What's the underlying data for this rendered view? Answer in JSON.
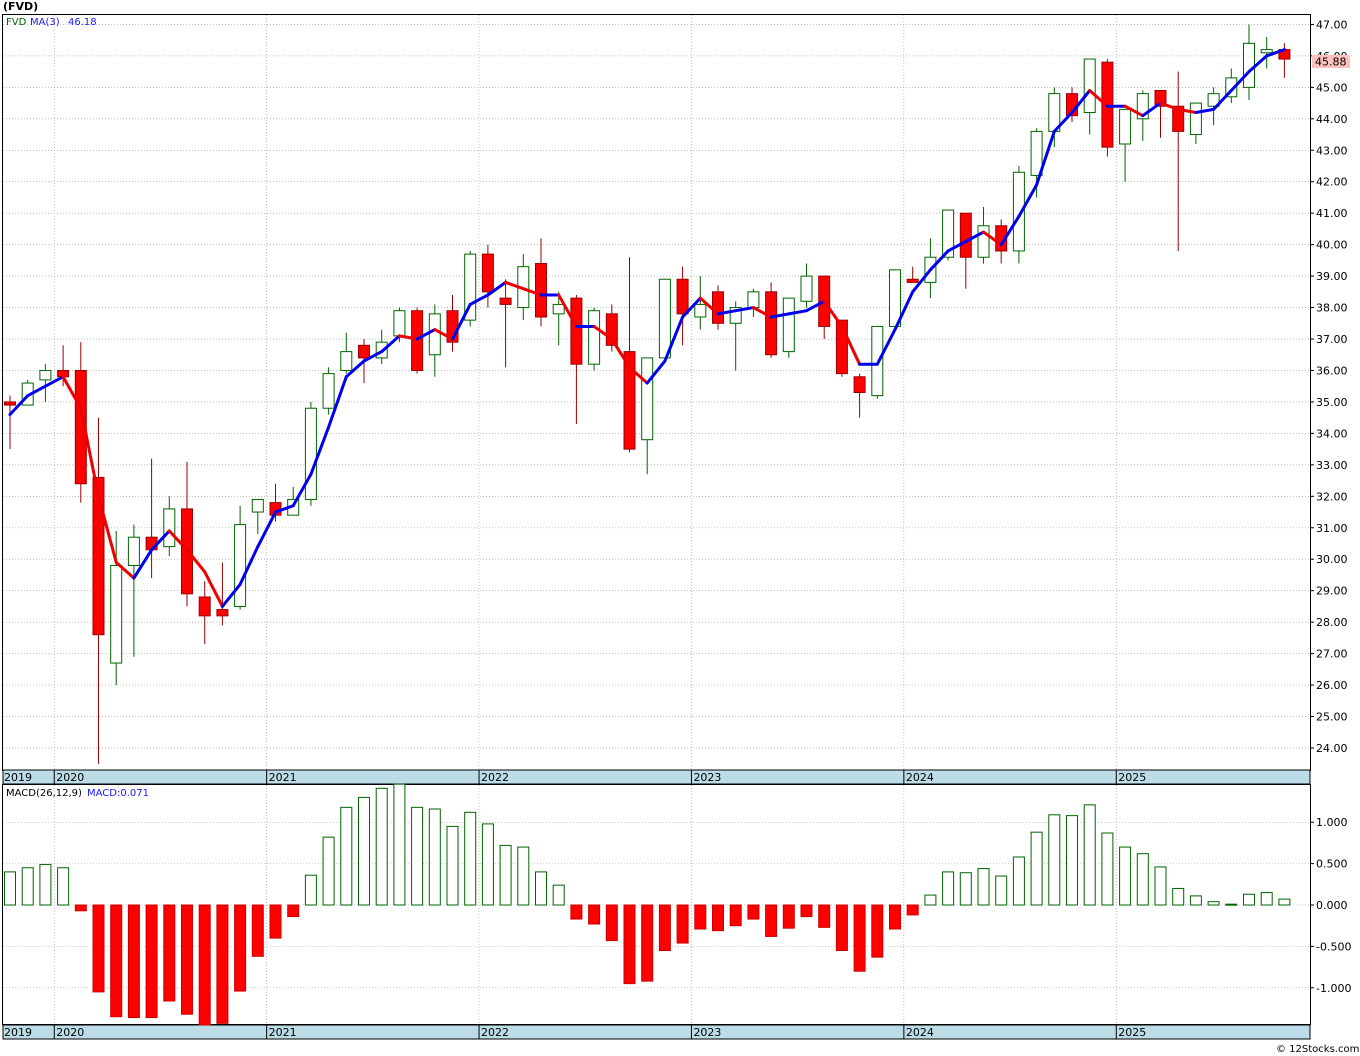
{
  "title": "(FVD)",
  "watermark": "© 12Stocks.com",
  "colors": {
    "up": "#006400",
    "down": "#ff0000",
    "ma_up": "#0000ee",
    "ma_down": "#ee0000",
    "axis_band": "#bcdde8",
    "grid": "#9a9a9a",
    "price_tag": "#ffc0c0"
  },
  "chart_data": [
    {
      "type": "candlestick",
      "legend": {
        "symbol": "FVD",
        "ma_label": "MA(3)",
        "ma_value": "46.18"
      },
      "last_price_label": "45.88",
      "ylim": [
        23.3,
        47.3
      ],
      "y_ticks": [
        "24.00",
        "25.00",
        "26.00",
        "27.00",
        "28.00",
        "29.00",
        "30.00",
        "31.00",
        "32.00",
        "33.00",
        "34.00",
        "35.00",
        "36.00",
        "37.00",
        "38.00",
        "39.00",
        "40.00",
        "41.00",
        "42.00",
        "43.00",
        "44.00",
        "45.00",
        "46.00",
        "47.00"
      ],
      "x_labels": [
        "2019",
        "2020",
        "2021",
        "2022",
        "2023",
        "2024",
        "2025"
      ],
      "grid": true,
      "period": "monthly",
      "start": "2019-10",
      "ohlc": [
        [
          35.0,
          35.2,
          33.5,
          34.9
        ],
        [
          34.9,
          35.7,
          34.9,
          35.6
        ],
        [
          35.7,
          36.2,
          35.0,
          36.0
        ],
        [
          36.0,
          36.8,
          35.5,
          35.8
        ],
        [
          36.0,
          36.9,
          31.8,
          32.4
        ],
        [
          32.6,
          34.5,
          23.5,
          27.6
        ],
        [
          26.7,
          30.9,
          26.0,
          29.8
        ],
        [
          29.8,
          31.1,
          26.9,
          30.7
        ],
        [
          30.7,
          33.2,
          29.4,
          30.3
        ],
        [
          30.4,
          32.0,
          30.1,
          31.6
        ],
        [
          31.6,
          33.1,
          28.5,
          28.9
        ],
        [
          28.8,
          29.3,
          27.3,
          28.2
        ],
        [
          28.4,
          29.9,
          27.9,
          28.2
        ],
        [
          28.5,
          31.7,
          28.4,
          31.1
        ],
        [
          31.5,
          31.9,
          30.8,
          31.9
        ],
        [
          31.8,
          32.4,
          31.2,
          31.4
        ],
        [
          31.4,
          32.3,
          31.4,
          31.9
        ],
        [
          31.9,
          35.0,
          31.7,
          34.8
        ],
        [
          34.8,
          36.1,
          34.6,
          35.9
        ],
        [
          36.0,
          37.2,
          35.9,
          36.6
        ],
        [
          36.8,
          37.0,
          35.6,
          36.4
        ],
        [
          36.4,
          37.3,
          36.2,
          36.9
        ],
        [
          37.1,
          38.0,
          36.9,
          37.9
        ],
        [
          37.9,
          38.0,
          35.9,
          36.0
        ],
        [
          36.5,
          38.1,
          35.8,
          37.8
        ],
        [
          37.9,
          38.4,
          36.6,
          36.9
        ],
        [
          37.6,
          39.8,
          37.4,
          39.7
        ],
        [
          39.7,
          40.0,
          38.0,
          38.5
        ],
        [
          38.3,
          38.9,
          36.1,
          38.1
        ],
        [
          38.0,
          39.7,
          37.6,
          39.3
        ],
        [
          39.4,
          40.2,
          37.4,
          37.7
        ],
        [
          37.8,
          38.5,
          36.8,
          38.1
        ],
        [
          38.3,
          38.4,
          34.3,
          36.2
        ],
        [
          36.2,
          38.0,
          36.0,
          37.9
        ],
        [
          37.8,
          38.1,
          36.6,
          36.8
        ],
        [
          36.6,
          39.6,
          33.4,
          33.5
        ],
        [
          33.8,
          36.3,
          32.7,
          36.4
        ],
        [
          36.4,
          38.9,
          36.3,
          38.9
        ],
        [
          38.9,
          39.3,
          36.8,
          37.8
        ],
        [
          37.7,
          39.0,
          37.3,
          38.1
        ],
        [
          38.5,
          38.7,
          37.3,
          37.5
        ],
        [
          37.5,
          38.2,
          36.0,
          38.0
        ],
        [
          38.0,
          38.6,
          37.7,
          38.5
        ],
        [
          38.5,
          38.8,
          36.4,
          36.5
        ],
        [
          36.6,
          38.3,
          36.4,
          38.3
        ],
        [
          38.2,
          39.4,
          38.0,
          39.0
        ],
        [
          39.0,
          39.0,
          37.0,
          37.4
        ],
        [
          37.6,
          37.6,
          35.8,
          35.9
        ],
        [
          35.8,
          35.9,
          34.5,
          35.3
        ],
        [
          35.2,
          37.3,
          35.1,
          37.4
        ],
        [
          37.4,
          39.2,
          37.4,
          39.2
        ],
        [
          38.9,
          39.3,
          38.8,
          38.8
        ],
        [
          38.8,
          40.2,
          38.3,
          39.6
        ],
        [
          39.6,
          41.1,
          39.5,
          41.1
        ],
        [
          41.0,
          41.0,
          38.6,
          39.6
        ],
        [
          39.6,
          41.2,
          39.4,
          40.6
        ],
        [
          40.6,
          40.8,
          39.4,
          39.8
        ],
        [
          39.8,
          42.5,
          39.4,
          42.3
        ],
        [
          42.2,
          43.7,
          41.5,
          43.6
        ],
        [
          43.6,
          45.0,
          43.1,
          44.8
        ],
        [
          44.8,
          45.0,
          43.9,
          44.1
        ],
        [
          44.2,
          45.9,
          43.5,
          45.9
        ],
        [
          45.8,
          45.9,
          42.8,
          43.1
        ],
        [
          43.2,
          44.3,
          42.0,
          44.3
        ],
        [
          44.0,
          44.9,
          43.3,
          44.8
        ],
        [
          44.9,
          44.9,
          43.4,
          44.4
        ],
        [
          44.4,
          45.5,
          39.8,
          43.6
        ],
        [
          43.5,
          44.5,
          43.2,
          44.5
        ],
        [
          44.4,
          45.0,
          43.8,
          44.8
        ],
        [
          44.7,
          45.6,
          44.5,
          45.3
        ],
        [
          45.0,
          47.0,
          44.6,
          46.4
        ],
        [
          46.1,
          46.6,
          45.6,
          46.2
        ],
        [
          46.2,
          46.4,
          45.3,
          45.9
        ]
      ],
      "ma3": [
        34.6,
        35.2,
        35.5,
        35.8,
        34.8,
        32.0,
        29.9,
        29.4,
        30.3,
        30.9,
        30.3,
        29.6,
        28.5,
        29.2,
        30.4,
        31.5,
        31.7,
        32.7,
        34.2,
        35.8,
        36.3,
        36.6,
        37.1,
        37.0,
        37.3,
        37.0,
        38.1,
        38.4,
        38.8,
        38.6,
        38.4,
        38.4,
        37.4,
        37.4,
        37.0,
        36.1,
        35.6,
        36.3,
        37.7,
        38.3,
        37.8,
        37.9,
        38.0,
        37.7,
        37.8,
        37.9,
        38.2,
        37.4,
        36.2,
        36.2,
        37.3,
        38.5,
        39.2,
        39.8,
        40.1,
        40.4,
        40.0,
        40.9,
        41.9,
        43.6,
        44.2,
        44.9,
        44.4,
        44.4,
        44.1,
        44.5,
        44.3,
        44.2,
        44.3,
        44.9,
        45.5,
        46.0,
        46.2
      ]
    },
    {
      "type": "bar",
      "legend": {
        "label": "MACD(26,12,9)",
        "value_label": "MACD:0.071"
      },
      "ylim": [
        -1.45,
        1.45
      ],
      "y_ticks": [
        "1.000",
        "0.500",
        "0.000",
        "-0.500",
        "-1.000"
      ],
      "x_labels": [
        "2019",
        "2020",
        "2021",
        "2022",
        "2023",
        "2024",
        "2025"
      ],
      "values": [
        0.4,
        0.45,
        0.49,
        0.45,
        -0.07,
        -1.05,
        -1.35,
        -1.36,
        -1.36,
        -1.16,
        -1.32,
        -1.45,
        -1.43,
        -1.04,
        -0.62,
        -0.4,
        -0.14,
        0.36,
        0.82,
        1.18,
        1.3,
        1.41,
        1.46,
        1.18,
        1.16,
        0.95,
        1.12,
        0.98,
        0.72,
        0.7,
        0.4,
        0.24,
        -0.17,
        -0.23,
        -0.43,
        -0.95,
        -0.92,
        -0.55,
        -0.46,
        -0.29,
        -0.31,
        -0.25,
        -0.17,
        -0.38,
        -0.28,
        -0.14,
        -0.27,
        -0.55,
        -0.8,
        -0.63,
        -0.29,
        -0.12,
        0.12,
        0.4,
        0.39,
        0.44,
        0.35,
        0.58,
        0.88,
        1.09,
        1.08,
        1.21,
        0.87,
        0.7,
        0.62,
        0.46,
        0.2,
        0.11,
        0.04,
        0.01,
        0.13,
        0.15,
        0.071
      ]
    }
  ]
}
